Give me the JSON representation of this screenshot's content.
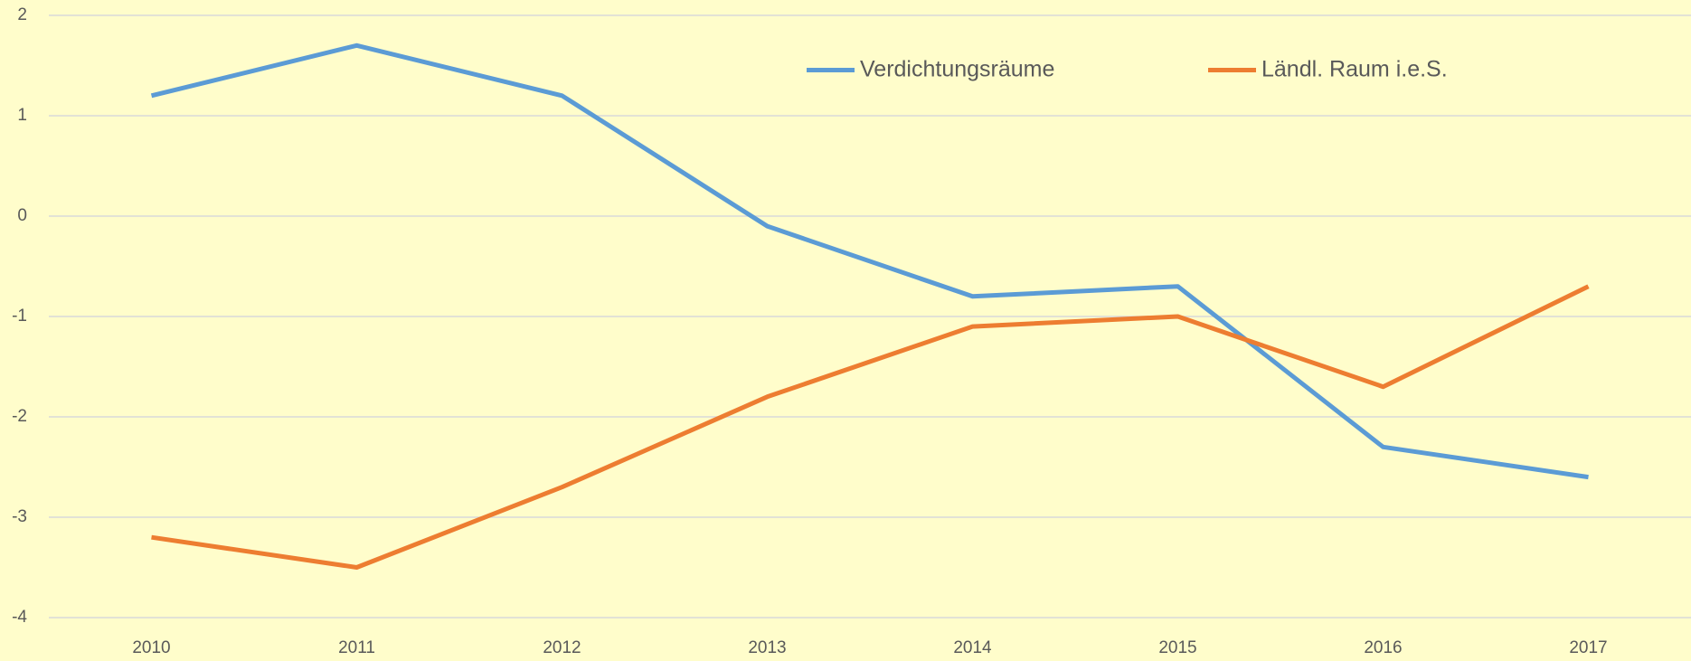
{
  "chart_data": {
    "type": "line",
    "categories": [
      "2010",
      "2011",
      "2012",
      "2013",
      "2014",
      "2015",
      "2016",
      "2017"
    ],
    "series": [
      {
        "name": "Verdichtungsräume",
        "color": "#5b9bd5",
        "values": [
          1.2,
          1.7,
          1.2,
          -0.1,
          -0.8,
          -0.7,
          -2.3,
          -2.6
        ]
      },
      {
        "name": "Ländl. Raum i.e.S.",
        "color": "#ed7d31",
        "values": [
          -3.2,
          -3.5,
          -2.7,
          -1.8,
          -1.1,
          -1.0,
          -1.7,
          -0.7
        ]
      }
    ],
    "ylim": [
      -4,
      2
    ],
    "yticks": [
      -4,
      -3,
      -2,
      -1,
      0,
      1,
      2
    ],
    "grid": true,
    "legend": "top"
  }
}
